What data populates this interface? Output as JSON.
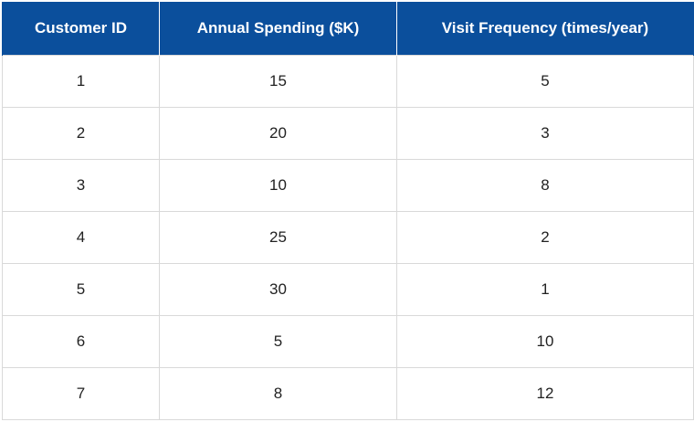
{
  "table": {
    "headers": [
      "Customer ID",
      "Annual Spending ($K)",
      "Visit Frequency (times/year)"
    ],
    "rows": [
      [
        "1",
        "15",
        "5"
      ],
      [
        "2",
        "20",
        "3"
      ],
      [
        "3",
        "10",
        "8"
      ],
      [
        "4",
        "25",
        "2"
      ],
      [
        "5",
        "30",
        "1"
      ],
      [
        "6",
        "5",
        "10"
      ],
      [
        "7",
        "8",
        "12"
      ]
    ]
  },
  "colors": {
    "header_background": "#0b4f9c",
    "header_text": "#ffffff",
    "grid_line": "#d9d9d9"
  }
}
